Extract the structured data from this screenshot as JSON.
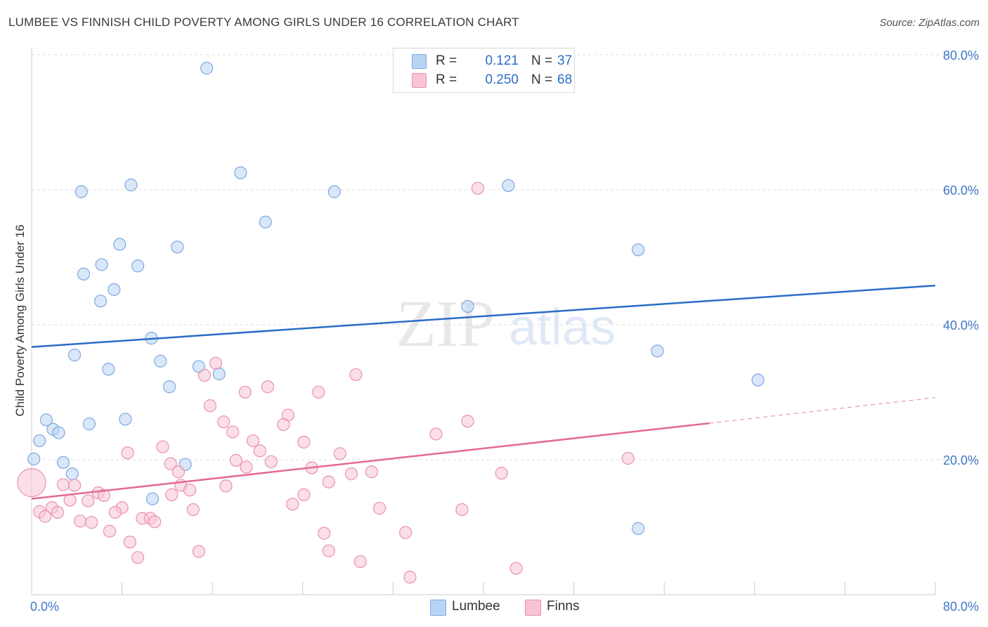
{
  "title": "LUMBEE VS FINNISH CHILD POVERTY AMONG GIRLS UNDER 16 CORRELATION CHART",
  "source": "Source: ZipAtlas.com",
  "watermark": {
    "zip": "ZIP",
    "atlas": "atlas"
  },
  "colors": {
    "lumbee_fill": "#b9d3f4",
    "lumbee_stroke": "#7ea8e0",
    "lumbee_line": "#2a6dc6",
    "finns_fill": "#f8c4d3",
    "finns_stroke": "#e992ae",
    "finns_line": "#e26a96",
    "axis_text_blue": "#3f78c8",
    "grid": "#dddddd"
  },
  "legend": {
    "rows": [
      {
        "r_label": "R =",
        "r_value": "0.121",
        "n_label": "N =",
        "n_value": "37"
      },
      {
        "r_label": "R =",
        "r_value": "0.250",
        "n_label": "N =",
        "n_value": "68"
      }
    ]
  },
  "bottom_legend": {
    "items": [
      "Lumbee",
      "Finns"
    ]
  },
  "chart_data": {
    "type": "scatter",
    "title": "LUMBEE VS FINNISH CHILD POVERTY AMONG GIRLS UNDER 16 CORRELATION CHART",
    "xlabel": "",
    "ylabel": "Child Poverty Among Girls Under 16",
    "xlim": [
      0,
      80
    ],
    "ylim": [
      0,
      80
    ],
    "x_tick_labels": [
      "0.0%",
      "80.0%"
    ],
    "y_tick_labels": [
      "20.0%",
      "40.0%",
      "60.0%",
      "80.0%"
    ],
    "y_ticks": [
      20,
      40,
      60,
      80
    ],
    "grid": true,
    "legend_position": "top-center",
    "series": [
      {
        "name": "Lumbee",
        "points": [
          [
            15.5,
            78.0
          ],
          [
            18.5,
            62.5
          ],
          [
            8.8,
            60.7
          ],
          [
            4.4,
            59.7
          ],
          [
            26.8,
            59.7
          ],
          [
            42.2,
            60.6
          ],
          [
            20.7,
            55.2
          ],
          [
            53.7,
            51.1
          ],
          [
            7.8,
            51.9
          ],
          [
            12.9,
            51.5
          ],
          [
            6.2,
            48.9
          ],
          [
            9.4,
            48.7
          ],
          [
            4.6,
            47.5
          ],
          [
            7.3,
            45.2
          ],
          [
            6.1,
            43.5
          ],
          [
            38.6,
            42.7
          ],
          [
            10.6,
            38.0
          ],
          [
            55.4,
            36.1
          ],
          [
            3.8,
            35.5
          ],
          [
            11.4,
            34.6
          ],
          [
            14.8,
            33.8
          ],
          [
            6.8,
            33.4
          ],
          [
            16.6,
            32.7
          ],
          [
            64.3,
            31.8
          ],
          [
            12.2,
            30.8
          ],
          [
            1.3,
            25.9
          ],
          [
            5.1,
            25.3
          ],
          [
            8.3,
            26.0
          ],
          [
            1.9,
            24.5
          ],
          [
            2.4,
            24.0
          ],
          [
            0.7,
            22.8
          ],
          [
            0.2,
            20.1
          ],
          [
            2.8,
            19.6
          ],
          [
            13.6,
            19.3
          ],
          [
            3.6,
            17.9
          ],
          [
            10.7,
            14.2
          ],
          [
            53.7,
            9.8
          ]
        ],
        "trend": {
          "x": [
            0,
            80
          ],
          "y": [
            36.7,
            45.8
          ]
        }
      },
      {
        "name": "Finns",
        "points": [
          [
            39.5,
            60.2
          ],
          [
            16.3,
            34.3
          ],
          [
            28.7,
            32.6
          ],
          [
            15.3,
            32.5
          ],
          [
            20.9,
            30.8
          ],
          [
            18.9,
            30.0
          ],
          [
            25.4,
            30.0
          ],
          [
            15.8,
            28.0
          ],
          [
            22.7,
            26.6
          ],
          [
            17.0,
            25.6
          ],
          [
            38.6,
            25.7
          ],
          [
            22.3,
            25.2
          ],
          [
            17.8,
            24.1
          ],
          [
            35.8,
            23.8
          ],
          [
            19.6,
            22.8
          ],
          [
            24.1,
            22.6
          ],
          [
            11.6,
            21.9
          ],
          [
            20.2,
            21.3
          ],
          [
            8.5,
            21.0
          ],
          [
            27.3,
            20.9
          ],
          [
            52.8,
            20.2
          ],
          [
            18.1,
            19.9
          ],
          [
            21.2,
            19.7
          ],
          [
            12.3,
            19.4
          ],
          [
            19.0,
            18.9
          ],
          [
            24.8,
            18.8
          ],
          [
            30.1,
            18.2
          ],
          [
            28.3,
            17.9
          ],
          [
            41.6,
            18.0
          ],
          [
            13.0,
            18.2
          ],
          [
            26.3,
            16.7
          ],
          [
            2.8,
            16.3
          ],
          [
            3.8,
            16.2
          ],
          [
            13.2,
            16.2
          ],
          [
            17.2,
            16.1
          ],
          [
            0.0,
            16.6
          ],
          [
            14.0,
            15.5
          ],
          [
            5.9,
            15.1
          ],
          [
            6.4,
            14.7
          ],
          [
            12.4,
            14.8
          ],
          [
            24.1,
            14.8
          ],
          [
            3.4,
            14.0
          ],
          [
            5.0,
            13.9
          ],
          [
            23.1,
            13.4
          ],
          [
            1.8,
            12.9
          ],
          [
            8.0,
            12.9
          ],
          [
            30.8,
            12.8
          ],
          [
            38.1,
            12.6
          ],
          [
            0.7,
            12.3
          ],
          [
            2.3,
            12.2
          ],
          [
            7.4,
            12.2
          ],
          [
            14.3,
            12.6
          ],
          [
            1.2,
            11.6
          ],
          [
            9.8,
            11.3
          ],
          [
            10.5,
            11.3
          ],
          [
            4.3,
            10.9
          ],
          [
            5.3,
            10.7
          ],
          [
            10.9,
            10.8
          ],
          [
            6.9,
            9.4
          ],
          [
            25.9,
            9.1
          ],
          [
            33.1,
            9.2
          ],
          [
            8.7,
            7.8
          ],
          [
            14.8,
            6.4
          ],
          [
            26.3,
            6.5
          ],
          [
            9.4,
            5.5
          ],
          [
            29.1,
            4.9
          ],
          [
            42.9,
            3.9
          ],
          [
            33.5,
            2.6
          ]
        ],
        "trend": {
          "x": [
            0,
            60
          ],
          "y": [
            14.2,
            25.4
          ],
          "dashed_to": {
            "x": 80,
            "y": 29.2
          }
        }
      }
    ]
  }
}
